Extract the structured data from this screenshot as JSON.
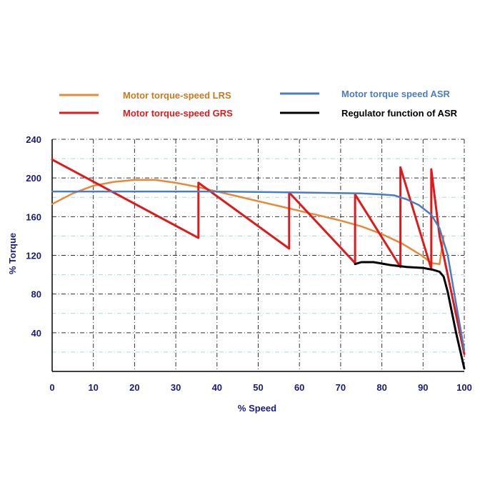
{
  "chart_data": {
    "type": "line",
    "xlabel": "% Speed",
    "ylabel": "% Torque",
    "xlim": [
      0,
      100
    ],
    "ylim": [
      0,
      240
    ],
    "x_ticks": [
      0,
      10,
      20,
      30,
      40,
      50,
      60,
      70,
      80,
      90,
      100
    ],
    "y_ticks": [
      40,
      80,
      120,
      160,
      200,
      240
    ],
    "grid": true,
    "legend_position": "top",
    "series": [
      {
        "name": "Motor torque-speed LRS",
        "color": "#e8883a",
        "x": [
          0,
          5,
          10,
          15,
          20,
          25,
          30,
          35,
          40,
          45,
          50,
          55,
          60,
          65,
          70,
          75,
          80,
          85,
          90,
          92,
          94,
          95
        ],
        "y": [
          173,
          184,
          192,
          196,
          198,
          198,
          195,
          191,
          186,
          181,
          176,
          171,
          166,
          161,
          156,
          150,
          142,
          132,
          119,
          112,
          111,
          140
        ]
      },
      {
        "name": "Motor torque-speed GRS",
        "color": "#e01a1a",
        "x": [
          0,
          35.5,
          35.5,
          57.5,
          57.5,
          73.5,
          73.5,
          84.5,
          84.5,
          92,
          92,
          94,
          100
        ],
        "y": [
          219,
          138,
          195,
          127,
          185,
          112,
          183,
          108,
          211,
          106,
          209,
          140,
          18
        ]
      },
      {
        "name": "Motor torque speed ASR",
        "color": "#4a7cc4",
        "x": [
          0,
          20,
          40,
          60,
          75,
          80,
          83,
          86,
          89,
          92,
          94,
          96,
          98,
          100
        ],
        "y": [
          186,
          186,
          186,
          185,
          184,
          183,
          182,
          178,
          172,
          162,
          148,
          120,
          70,
          22
        ]
      },
      {
        "name": "Regulator function of ASR",
        "color": "#000000",
        "x": [
          73.5,
          75,
          78,
          82,
          86,
          90,
          92.5,
          94,
          95,
          96,
          98,
          100
        ],
        "y": [
          111,
          113,
          113,
          110,
          108,
          107,
          105,
          103,
          98,
          82,
          40,
          3
        ]
      }
    ]
  }
}
